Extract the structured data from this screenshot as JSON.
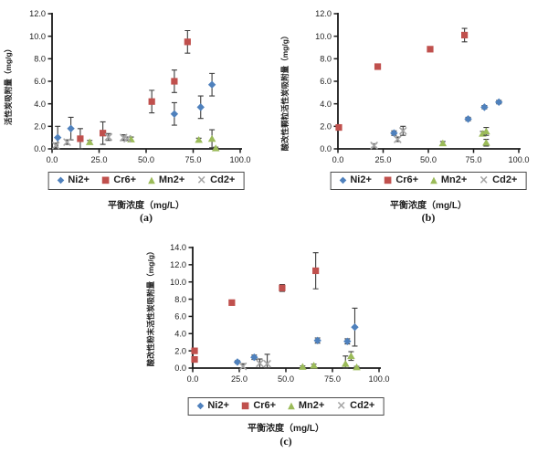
{
  "figure": {
    "background": "#ffffff",
    "axis_color": "#1a1a1a",
    "error_bar_color": "#3d3d3d",
    "text_color": "#1f1f1f",
    "x_axis_label": "平衡浓度（mg/L）",
    "legend": [
      {
        "label": "Ni2+",
        "marker": "diamond",
        "glyph": "◆",
        "color": "#4F81BD"
      },
      {
        "label": "Cr6+",
        "marker": "square",
        "glyph": "■",
        "color": "#C0504D"
      },
      {
        "label": "Mn2+",
        "marker": "triangle",
        "glyph": "▲",
        "color": "#9BBB59"
      },
      {
        "label": "Cd2+",
        "marker": "x",
        "glyph": "×",
        "color": "#A6A6A6"
      }
    ]
  },
  "chart_data": [
    {
      "id": "a",
      "caption": "(a)",
      "type": "scatter",
      "xlabel": "平衡浓度（mg/L）",
      "ylabel": "活性炭吸附量（mg/g）",
      "xlim": [
        0,
        100
      ],
      "ylim": [
        0,
        12
      ],
      "xtick_step": 25,
      "ytick_step": 2,
      "grid": false,
      "legend_position": "bottom",
      "error_bars": true,
      "series": [
        {
          "name": "Ni2+",
          "points": [
            [
              3,
              1.0,
              1.0
            ],
            [
              10,
              1.8,
              1.0
            ],
            [
              65,
              3.1,
              1.0
            ],
            [
              79,
              3.7,
              1.0
            ],
            [
              85,
              5.7,
              1.0
            ]
          ]
        },
        {
          "name": "Cr6+",
          "points": [
            [
              15,
              0.9,
              0.9
            ],
            [
              27,
              1.4,
              1.0
            ],
            [
              53,
              4.2,
              1.0
            ],
            [
              65,
              6.0,
              1.0
            ],
            [
              72,
              9.5,
              1.0
            ]
          ]
        },
        {
          "name": "Mn2+",
          "points": [
            [
              20,
              0.6,
              0.15
            ],
            [
              42,
              0.85,
              0.2
            ],
            [
              78,
              0.8,
              0.15
            ],
            [
              85,
              0.9,
              0.8
            ],
            [
              87,
              0.05,
              0.1
            ]
          ]
        },
        {
          "name": "Cd2+",
          "points": [
            [
              2,
              0.3,
              0.2
            ],
            [
              8,
              0.6,
              0.2
            ],
            [
              30,
              1.05,
              0.3
            ],
            [
              38,
              1.0,
              0.25
            ],
            [
              40,
              0.9,
              0.15
            ]
          ]
        }
      ]
    },
    {
      "id": "b",
      "caption": "(b)",
      "type": "scatter",
      "xlabel": "平衡浓度（mg/L）",
      "ylabel": "酸改性颗粒活性炭吸附量（mg/g）",
      "xlim": [
        0,
        100
      ],
      "ylim": [
        0,
        12
      ],
      "xtick_step": 25,
      "ytick_step": 2,
      "grid": false,
      "legend_position": "bottom",
      "error_bars": true,
      "series": [
        {
          "name": "Ni2+",
          "points": [
            [
              31,
              1.4,
              0.2
            ],
            [
              72,
              2.65,
              0.15
            ],
            [
              81,
              3.7,
              0.15
            ],
            [
              89,
              4.15,
              0.15
            ]
          ]
        },
        {
          "name": "Cr6+",
          "points": [
            [
              0.5,
              1.9,
              0.15
            ],
            [
              22,
              7.3,
              0.2
            ],
            [
              51,
              8.85,
              0.15
            ],
            [
              70,
              10.1,
              0.6
            ]
          ]
        },
        {
          "name": "Mn2+",
          "points": [
            [
              58,
              0.5,
              0.15
            ],
            [
              80,
              1.35,
              0.2
            ],
            [
              82,
              1.55,
              0.35
            ],
            [
              82,
              0.55,
              0.3
            ]
          ]
        },
        {
          "name": "Cd2+",
          "points": [
            [
              20,
              0.3,
              0.15
            ],
            [
              33,
              0.85,
              0.2
            ],
            [
              36,
              1.6,
              0.4
            ]
          ]
        }
      ]
    },
    {
      "id": "c",
      "caption": "(c)",
      "type": "scatter",
      "xlabel": "平衡浓度（mg/L）",
      "ylabel": "酸改性粉末活性炭吸附量（mg/g）",
      "xlim": [
        0,
        100
      ],
      "ylim": [
        0,
        14
      ],
      "xtick_step": 25,
      "ytick_step": 2,
      "grid": false,
      "legend_position": "bottom",
      "error_bars": true,
      "series": [
        {
          "name": "Ni2+",
          "points": [
            [
              24,
              0.7,
              0.15
            ],
            [
              33,
              1.25,
              0.25
            ],
            [
              67,
              3.2,
              0.3
            ],
            [
              83,
              3.1,
              0.3
            ],
            [
              87,
              4.75,
              2.2
            ]
          ]
        },
        {
          "name": "Cr6+",
          "points": [
            [
              1,
              1.0,
              0.2
            ],
            [
              1,
              2.0,
              0.2
            ],
            [
              21,
              7.6,
              0.15
            ],
            [
              48,
              9.3,
              0.4
            ],
            [
              66,
              11.3,
              2.1
            ]
          ]
        },
        {
          "name": "Mn2+",
          "points": [
            [
              59,
              0.15,
              0.1
            ],
            [
              65,
              0.3,
              0.15
            ],
            [
              82,
              0.5,
              0.9
            ],
            [
              85,
              1.4,
              0.5
            ],
            [
              88,
              0.1,
              0.1
            ]
          ]
        },
        {
          "name": "Cd2+",
          "points": [
            [
              27,
              0.2,
              0.3
            ],
            [
              36,
              0.55,
              0.5
            ],
            [
              40,
              0.5,
              1.1
            ]
          ]
        }
      ]
    }
  ]
}
